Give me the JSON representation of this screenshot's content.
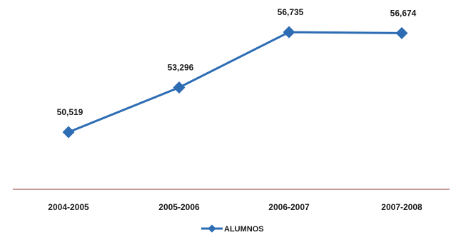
{
  "chart_data": {
    "type": "line",
    "categories": [
      "2004-2005",
      "2005-2006",
      "2006-2007",
      "2007-2008"
    ],
    "series": [
      {
        "name": "ALUMNOS",
        "values": [
          50519,
          53296,
          56735,
          56674
        ],
        "color": "#2E6DB4"
      }
    ],
    "data_labels": [
      "50,519",
      "53,296",
      "56,735",
      "56,674"
    ],
    "axis_color": "#8B3A3A",
    "legend_position": "bottom",
    "grid": false,
    "ylim": [
      44000,
      58500
    ]
  }
}
